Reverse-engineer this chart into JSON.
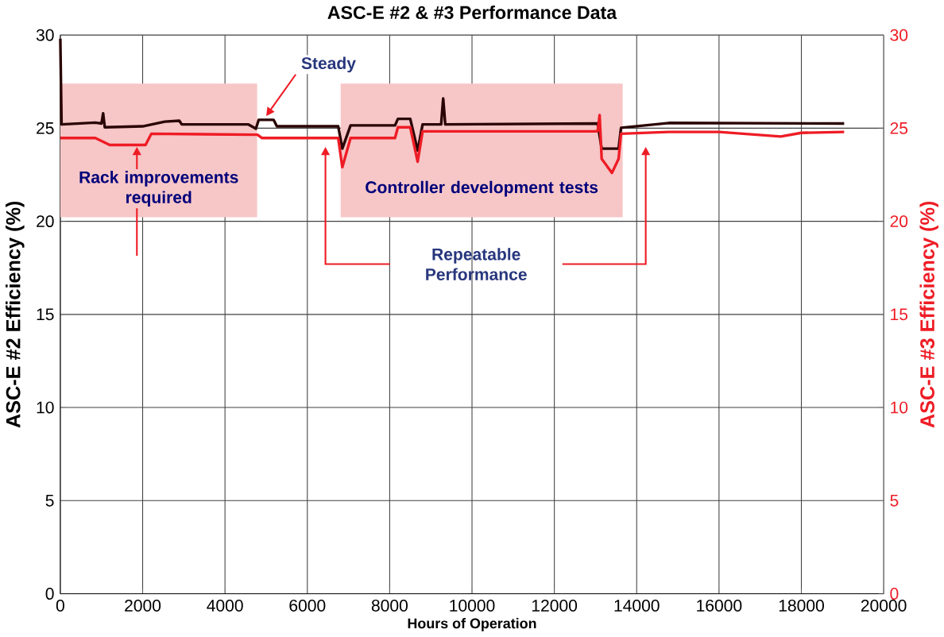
{
  "chart_data": {
    "type": "line",
    "title": "ASC-E #2 & #3 Performance Data",
    "xlabel": "Hours of Operation",
    "ylabel": "ASC-E #2 Efficiency (%)",
    "y2label": "ASC-E #3 Efficiency (%)",
    "xlim": [
      0,
      20000
    ],
    "xticks": [
      0,
      2000,
      4000,
      6000,
      8000,
      10000,
      12000,
      14000,
      16000,
      18000,
      20000
    ],
    "ylim": [
      0,
      30
    ],
    "yticks": [
      0,
      5,
      10,
      15,
      20,
      25,
      30
    ],
    "y2lim": [
      0,
      30
    ],
    "y2ticks": [
      0,
      5,
      10,
      15,
      20,
      25,
      30
    ],
    "grid": true,
    "marker": "none",
    "line_style": "solid",
    "series": [
      {
        "color": "#2a0505",
        "x": [
          0,
          30,
          850,
          1000,
          1040,
          1080,
          2000,
          2540,
          2890,
          2950,
          4570,
          4750,
          4820,
          5180,
          5260,
          6750,
          6850,
          7050,
          8130,
          8200,
          8500,
          8680,
          8800,
          9250,
          9300,
          9350,
          13050,
          13150,
          13560,
          13620,
          14780,
          19040
        ],
        "values": [
          29.8,
          25.2,
          25.3,
          25.25,
          25.8,
          25.05,
          25.1,
          25.35,
          25.4,
          25.2,
          25.2,
          24.97,
          25.45,
          25.45,
          25.1,
          25.1,
          23.9,
          25.15,
          25.15,
          25.5,
          25.5,
          23.8,
          25.2,
          25.2,
          26.6,
          25.2,
          25.25,
          23.9,
          23.9,
          25.02,
          25.28,
          25.25
        ]
      },
      {
        "color": "#ee1c25",
        "axis": "y2",
        "x": [
          0,
          850,
          1200,
          2070,
          2210,
          4790,
          4900,
          6750,
          6850,
          7050,
          8130,
          8200,
          8500,
          8680,
          8800,
          13050,
          13100,
          13150,
          13400,
          13560,
          13620,
          14780,
          16000,
          17500,
          18000,
          19040
        ],
        "values": [
          24.47,
          24.47,
          24.1,
          24.1,
          24.7,
          24.65,
          24.47,
          24.47,
          22.9,
          24.47,
          24.47,
          25.05,
          25.05,
          23.2,
          24.83,
          24.83,
          25.7,
          23.35,
          22.6,
          23.35,
          24.7,
          24.8,
          24.8,
          24.55,
          24.75,
          24.8
        ]
      }
    ],
    "bands": [
      {
        "axis": "x",
        "from": 0,
        "to": 4780,
        "label": "Rack improvements required",
        "color": "#f7c6c7"
      },
      {
        "axis": "x",
        "from": 6810,
        "to": 13660,
        "label": "Controller development tests",
        "color": "#f7c6c7"
      }
    ],
    "annotations": [
      "Steady",
      "Repeatable Performance"
    ]
  }
}
